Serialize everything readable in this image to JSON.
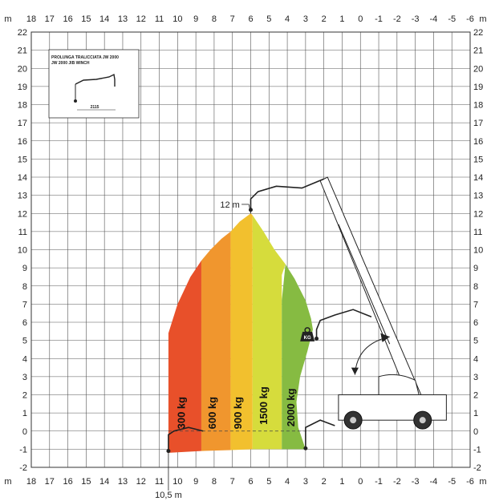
{
  "chart_data": {
    "type": "load-chart",
    "x_axis": {
      "unit": "m",
      "ticks": [
        "18",
        "17",
        "16",
        "15",
        "14",
        "13",
        "12",
        "11",
        "10",
        "9",
        "8",
        "7",
        "6",
        "5",
        "4",
        "3",
        "2",
        "1",
        "0",
        "-1",
        "-2",
        "-3",
        "-4",
        "-5",
        "-6"
      ]
    },
    "y_axis": {
      "unit": "m",
      "ticks": [
        "22",
        "21",
        "20",
        "19",
        "18",
        "17",
        "16",
        "15",
        "14",
        "13",
        "12",
        "11",
        "10",
        "9",
        "8",
        "7",
        "6",
        "5",
        "4",
        "3",
        "2",
        "1",
        "0",
        "-1",
        "-2"
      ]
    },
    "grid": true,
    "zones": [
      {
        "label": "300 kg",
        "color": "#e8502a",
        "x_from": 10.5,
        "x_to": 8.7
      },
      {
        "label": "600 kg",
        "color": "#f0962e",
        "x_from": 8.7,
        "x_to": 7.1
      },
      {
        "label": "900 kg",
        "color": "#f2c02e",
        "x_from": 7.1,
        "x_to": 5.9
      },
      {
        "label": "1500 kg",
        "color": "#d6dc3c",
        "x_from": 5.9,
        "x_to": 4.3
      },
      {
        "label": "2000 kg",
        "color": "#86bb42",
        "x_from": 4.3,
        "x_to": 2.8
      }
    ],
    "annotations": [
      {
        "text": "12 m",
        "x": 6.0,
        "y": 12
      },
      {
        "text": "10,5 m",
        "x": 10.5,
        "y": -1.2
      }
    ],
    "inset": {
      "title_line1": "PROLUNGA TRALICCIATA JW 2000",
      "title_line2": "JW 2000 JIB WINCH",
      "dimension": "2115"
    },
    "load_icon_text": "KG"
  }
}
